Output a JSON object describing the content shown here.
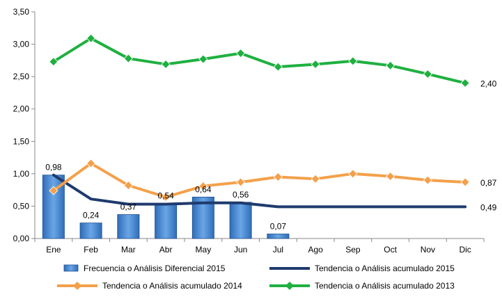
{
  "chart_data": {
    "type": "bar",
    "categories": [
      "Ene",
      "Feb",
      "Mar",
      "Abr",
      "May",
      "Jun",
      "Jul",
      "Ago",
      "Sep",
      "Oct",
      "Nov",
      "Dic"
    ],
    "ylim": [
      0,
      3.5
    ],
    "ytick_step": 0.5,
    "ytick_labels": [
      "0,00",
      "0,50",
      "1,00",
      "1,50",
      "2,00",
      "2,50",
      "3,00",
      "3,50"
    ],
    "grid": false,
    "legend_position": "bottom",
    "series": [
      {
        "name": "Frecuencia o Análisis Diferencial 2015",
        "type": "bar",
        "color": "#4f8fd6",
        "values": [
          0.98,
          0.24,
          0.37,
          0.54,
          0.64,
          0.56,
          0.07,
          null,
          null,
          null,
          null,
          null
        ],
        "labels": [
          "0,98",
          "0,24",
          "0,37",
          "0,54",
          "0,64",
          "0,56",
          "0,07",
          null,
          null,
          null,
          null,
          null
        ]
      },
      {
        "name": "Tendencia o Análisis acumulado 2015",
        "type": "line",
        "marker": "none",
        "color": "#1f3b6e",
        "values": [
          0.98,
          0.61,
          0.53,
          0.53,
          0.55,
          0.55,
          0.49,
          0.49,
          0.49,
          0.49,
          0.49,
          0.49
        ],
        "end_label": "0,49"
      },
      {
        "name": "Tendencia o Análisis acumulado 2014",
        "type": "line",
        "marker": "diamond",
        "color": "#f4a04a",
        "values": [
          0.74,
          1.16,
          0.82,
          0.64,
          0.81,
          0.87,
          0.95,
          0.92,
          1.0,
          0.96,
          0.9,
          0.87
        ],
        "end_label": "0,87"
      },
      {
        "name": "Tendencia o Análisis acumulado 2013",
        "type": "line",
        "marker": "diamond",
        "color": "#1fb040",
        "values": [
          2.73,
          3.09,
          2.78,
          2.69,
          2.77,
          2.86,
          2.65,
          2.69,
          2.74,
          2.67,
          2.54,
          2.4
        ],
        "end_label": "2,40"
      }
    ]
  }
}
